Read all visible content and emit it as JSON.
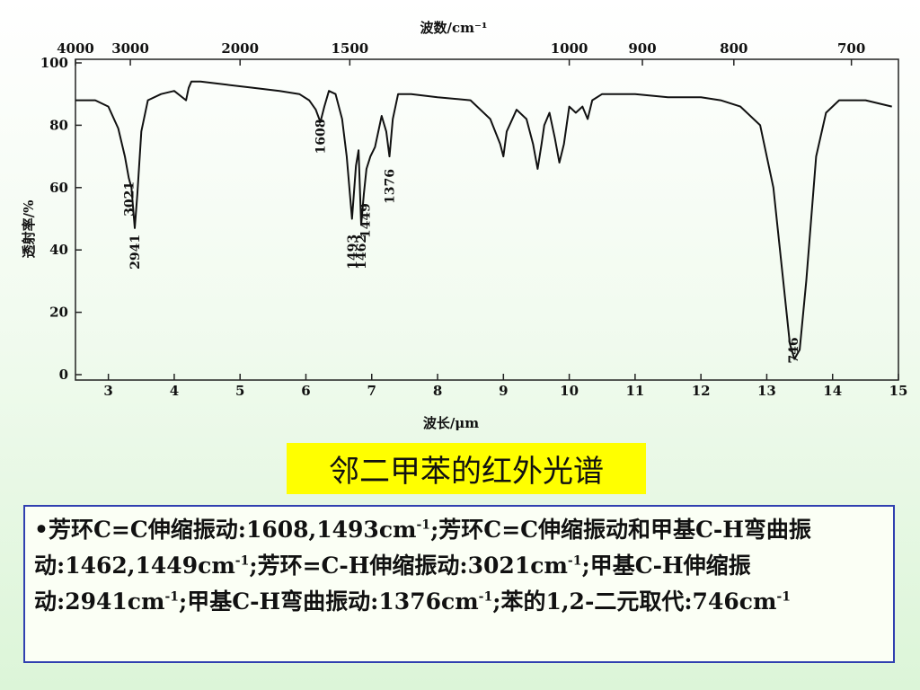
{
  "chart_data": {
    "type": "line",
    "top_axis_title": "波数/cm⁻¹",
    "bottom_axis_title": "波长/μm",
    "y_axis_title": "透射率/%",
    "y_ticks": [
      0,
      20,
      40,
      60,
      80,
      100
    ],
    "y_range": [
      0,
      100
    ],
    "x_ticks_um": [
      3,
      4,
      5,
      6,
      7,
      8,
      9,
      10,
      11,
      12,
      13,
      14,
      15
    ],
    "x_range_um": [
      2.5,
      15
    ],
    "top_ticks_cm": [
      4000,
      3000,
      2000,
      1500,
      1000,
      900,
      800,
      700
    ],
    "peak_labels": [
      {
        "text": "3021",
        "x_um": 3.31,
        "y": 62
      },
      {
        "text": "2941",
        "x_um": 3.4,
        "y": 45
      },
      {
        "text": "1608",
        "x_um": 6.22,
        "y": 82
      },
      {
        "text": "1493",
        "x_um": 6.7,
        "y": 45
      },
      {
        "text": "1462",
        "x_um": 6.84,
        "y": 45
      },
      {
        "text": "1449",
        "x_um": 6.9,
        "y": 55
      },
      {
        "text": "1376",
        "x_um": 7.27,
        "y": 66
      },
      {
        "text": "746",
        "x_um": 13.4,
        "y": 12
      }
    ],
    "series": [
      {
        "x": [
          2.5,
          2.8,
          3.0,
          3.15,
          3.25,
          3.31,
          3.35,
          3.4,
          3.44,
          3.5,
          3.6,
          3.8,
          4.0,
          4.18,
          4.22,
          4.26,
          4.4,
          4.8,
          5.2,
          5.6,
          5.9,
          6.05,
          6.15,
          6.22,
          6.28,
          6.35,
          6.45,
          6.55,
          6.62,
          6.7,
          6.76,
          6.8,
          6.84,
          6.88,
          6.92,
          6.98,
          7.05,
          7.15,
          7.22,
          7.27,
          7.32,
          7.4,
          7.6,
          8.0,
          8.5,
          8.8,
          8.95,
          9.0,
          9.05,
          9.2,
          9.35,
          9.45,
          9.52,
          9.58,
          9.62,
          9.7,
          9.78,
          9.85,
          9.92,
          10.0,
          10.1,
          10.2,
          10.28,
          10.35,
          10.5,
          11.0,
          11.5,
          12.0,
          12.3,
          12.6,
          12.9,
          13.1,
          13.25,
          13.35,
          13.42,
          13.5,
          13.6,
          13.75,
          13.9,
          14.1,
          14.5,
          14.9
        ],
        "y": [
          88,
          88,
          86,
          79,
          70,
          63,
          60,
          47,
          58,
          78,
          88,
          90,
          91,
          88,
          92,
          94,
          94,
          93,
          92,
          91,
          90,
          88,
          85,
          81,
          86,
          91,
          90,
          82,
          70,
          50,
          67,
          72,
          48,
          58,
          66,
          70,
          73,
          83,
          78,
          70,
          82,
          90,
          90,
          89,
          88,
          82,
          74,
          70,
          78,
          85,
          82,
          74,
          66,
          74,
          80,
          84,
          76,
          68,
          74,
          86,
          84,
          86,
          82,
          88,
          90,
          90,
          89,
          89,
          88,
          86,
          80,
          60,
          30,
          10,
          5,
          8,
          30,
          70,
          84,
          88,
          88,
          86
        ]
      }
    ]
  },
  "caption": "邻二甲苯的红外光谱",
  "description": {
    "bullet": "•",
    "p1": "芳环C=C伸缩振动:1608,1493cm",
    "p2": ";芳环C=C伸缩振动和甲基C-H弯曲振动:1462,1449cm",
    "p3": ";芳环=C-H伸缩振动:3021cm",
    "p4": ";甲基C-H伸缩振动:2941cm",
    "p5": ";甲基C-H弯曲振动:1376cm",
    "p6": ";苯的1,2-二元取代:746cm",
    "sup": "-1"
  }
}
